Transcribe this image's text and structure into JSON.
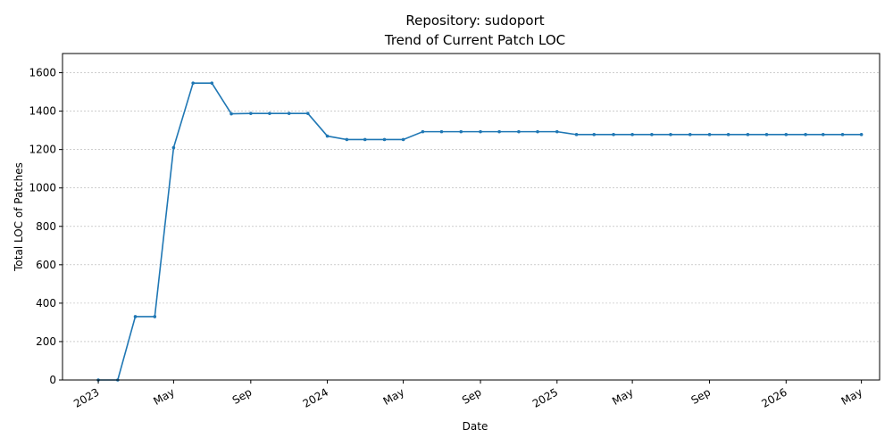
{
  "chart_data": {
    "type": "line",
    "title_lines": [
      "Repository: sudoport",
      "Trend of Current Patch LOC"
    ],
    "xlabel": "Date",
    "ylabel": "Total LOC of Patches",
    "ylim": [
      0,
      1700
    ],
    "xlim": [
      "2022-11-05",
      "2026-05-30"
    ],
    "y_ticks": [
      0,
      200,
      400,
      600,
      800,
      1000,
      1200,
      1400,
      1600
    ],
    "x_ticks": [
      {
        "date": "2023-01-01",
        "label": "2023"
      },
      {
        "date": "2023-05-01",
        "label": "May"
      },
      {
        "date": "2023-09-01",
        "label": "Sep"
      },
      {
        "date": "2024-01-01",
        "label": "2024"
      },
      {
        "date": "2024-05-01",
        "label": "May"
      },
      {
        "date": "2024-09-01",
        "label": "Sep"
      },
      {
        "date": "2025-01-01",
        "label": "2025"
      },
      {
        "date": "2025-05-01",
        "label": "May"
      },
      {
        "date": "2025-09-01",
        "label": "Sep"
      },
      {
        "date": "2026-01-01",
        "label": "2026"
      },
      {
        "date": "2026-05-01",
        "label": "May"
      }
    ],
    "grid": "y",
    "color": "#1f77b4",
    "series": [
      {
        "x": [
          "2023-01-01",
          "2023-02-01",
          "2023-03-01",
          "2023-04-01",
          "2023-05-01",
          "2023-06-01",
          "2023-07-01",
          "2023-08-01",
          "2023-09-01",
          "2023-10-01",
          "2023-11-01",
          "2023-12-01",
          "2024-01-01",
          "2024-02-01",
          "2024-03-01",
          "2024-04-01",
          "2024-05-01",
          "2024-06-01",
          "2024-07-01",
          "2024-08-01",
          "2024-09-01",
          "2024-10-01",
          "2024-11-01",
          "2024-12-01",
          "2025-01-01",
          "2025-02-01",
          "2025-03-01",
          "2025-04-01",
          "2025-05-01",
          "2025-06-01",
          "2025-07-01",
          "2025-08-01",
          "2025-09-01",
          "2025-10-01",
          "2025-11-01",
          "2025-12-01",
          "2026-01-01",
          "2026-02-01",
          "2026-03-01",
          "2026-04-01",
          "2026-05-01"
        ],
        "values": [
          0,
          0,
          330,
          330,
          1210,
          1546,
          1546,
          1386,
          1388,
          1388,
          1388,
          1388,
          1270,
          1252,
          1252,
          1252,
          1252,
          1293,
          1293,
          1293,
          1293,
          1293,
          1293,
          1293,
          1293,
          1278,
          1278,
          1278,
          1278,
          1278,
          1278,
          1278,
          1278,
          1278,
          1278,
          1278,
          1278,
          1278,
          1278,
          1278,
          1278
        ]
      }
    ]
  }
}
